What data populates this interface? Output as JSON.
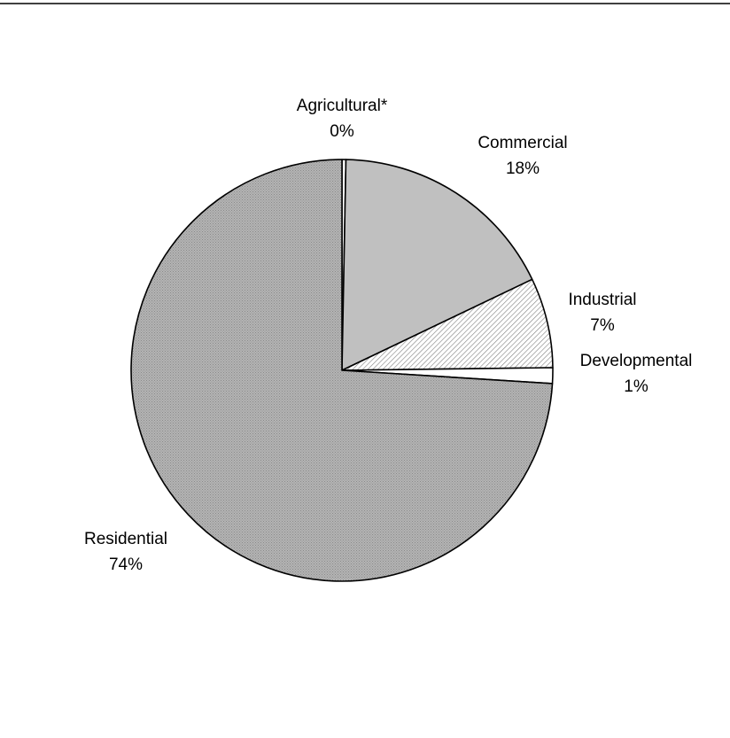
{
  "chart_data": {
    "type": "pie",
    "slices": [
      {
        "name": "Agricultural*",
        "value": 0.3,
        "label": "0%",
        "fill_pattern": "white"
      },
      {
        "name": "Commercial",
        "value": 17.6,
        "label": "18%",
        "fill_pattern": "light-gray"
      },
      {
        "name": "Industrial",
        "value": 6.9,
        "label": "7%",
        "fill_pattern": "diagonal-hatch"
      },
      {
        "name": "Developmental",
        "value": 1.2,
        "label": "1%",
        "fill_pattern": "white"
      },
      {
        "name": "Residential",
        "value": 74.0,
        "label": "74%",
        "fill_pattern": "dotted-gray"
      }
    ],
    "start_angle": "12 o'clock",
    "direction": "clockwise",
    "legend": "none (labels beside slices)",
    "colors": {
      "stroke": "#000000",
      "light_gray": "#c0c0c0",
      "dotted_base": "#ababab",
      "hatch": "#7f7f7f",
      "background": "#ffffff"
    }
  }
}
